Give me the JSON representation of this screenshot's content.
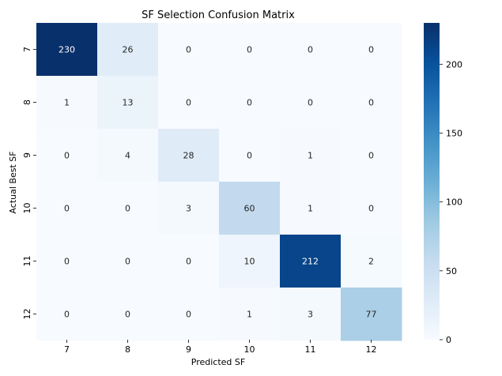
{
  "chart_data": {
    "type": "heatmap",
    "title": "SF Selection Confusion Matrix",
    "xlabel": "Predicted SF",
    "ylabel": "Actual Best SF",
    "x_categories": [
      "7",
      "8",
      "9",
      "10",
      "11",
      "12"
    ],
    "y_categories": [
      "7",
      "8",
      "9",
      "10",
      "11",
      "12"
    ],
    "values": [
      [
        230,
        26,
        0,
        0,
        0,
        0
      ],
      [
        1,
        13,
        0,
        0,
        0,
        0
      ],
      [
        0,
        4,
        28,
        0,
        1,
        0
      ],
      [
        0,
        0,
        3,
        60,
        1,
        0
      ],
      [
        0,
        0,
        0,
        10,
        212,
        2
      ],
      [
        0,
        0,
        0,
        1,
        3,
        77
      ]
    ],
    "colormap": "Blues",
    "colorbar": {
      "min": 0,
      "max": 230,
      "ticks": [
        0,
        50,
        100,
        150,
        200
      ]
    },
    "annotations": true
  }
}
